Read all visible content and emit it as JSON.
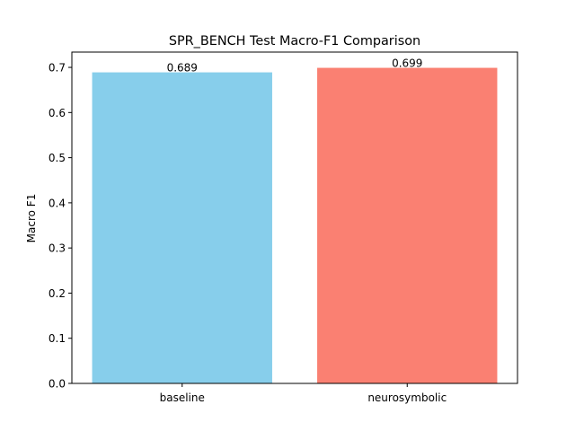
{
  "chart_data": {
    "type": "bar",
    "title": "SPR_BENCH Test Macro-F1 Comparison",
    "xlabel": "",
    "ylabel": "Macro F1",
    "categories": [
      "baseline",
      "neurosymbolic"
    ],
    "values": [
      0.689,
      0.699
    ],
    "value_labels": [
      "0.689",
      "0.699"
    ],
    "colors": [
      "#87ceeb",
      "#fa8072"
    ],
    "ylim": [
      0,
      0.7339
    ],
    "yticks": [
      0.0,
      0.1,
      0.2,
      0.3,
      0.4,
      0.5,
      0.6,
      0.7
    ],
    "ytick_labels": [
      "0.0",
      "0.1",
      "0.2",
      "0.3",
      "0.4",
      "0.5",
      "0.6",
      "0.7"
    ],
    "grid": false,
    "legend": "none"
  }
}
